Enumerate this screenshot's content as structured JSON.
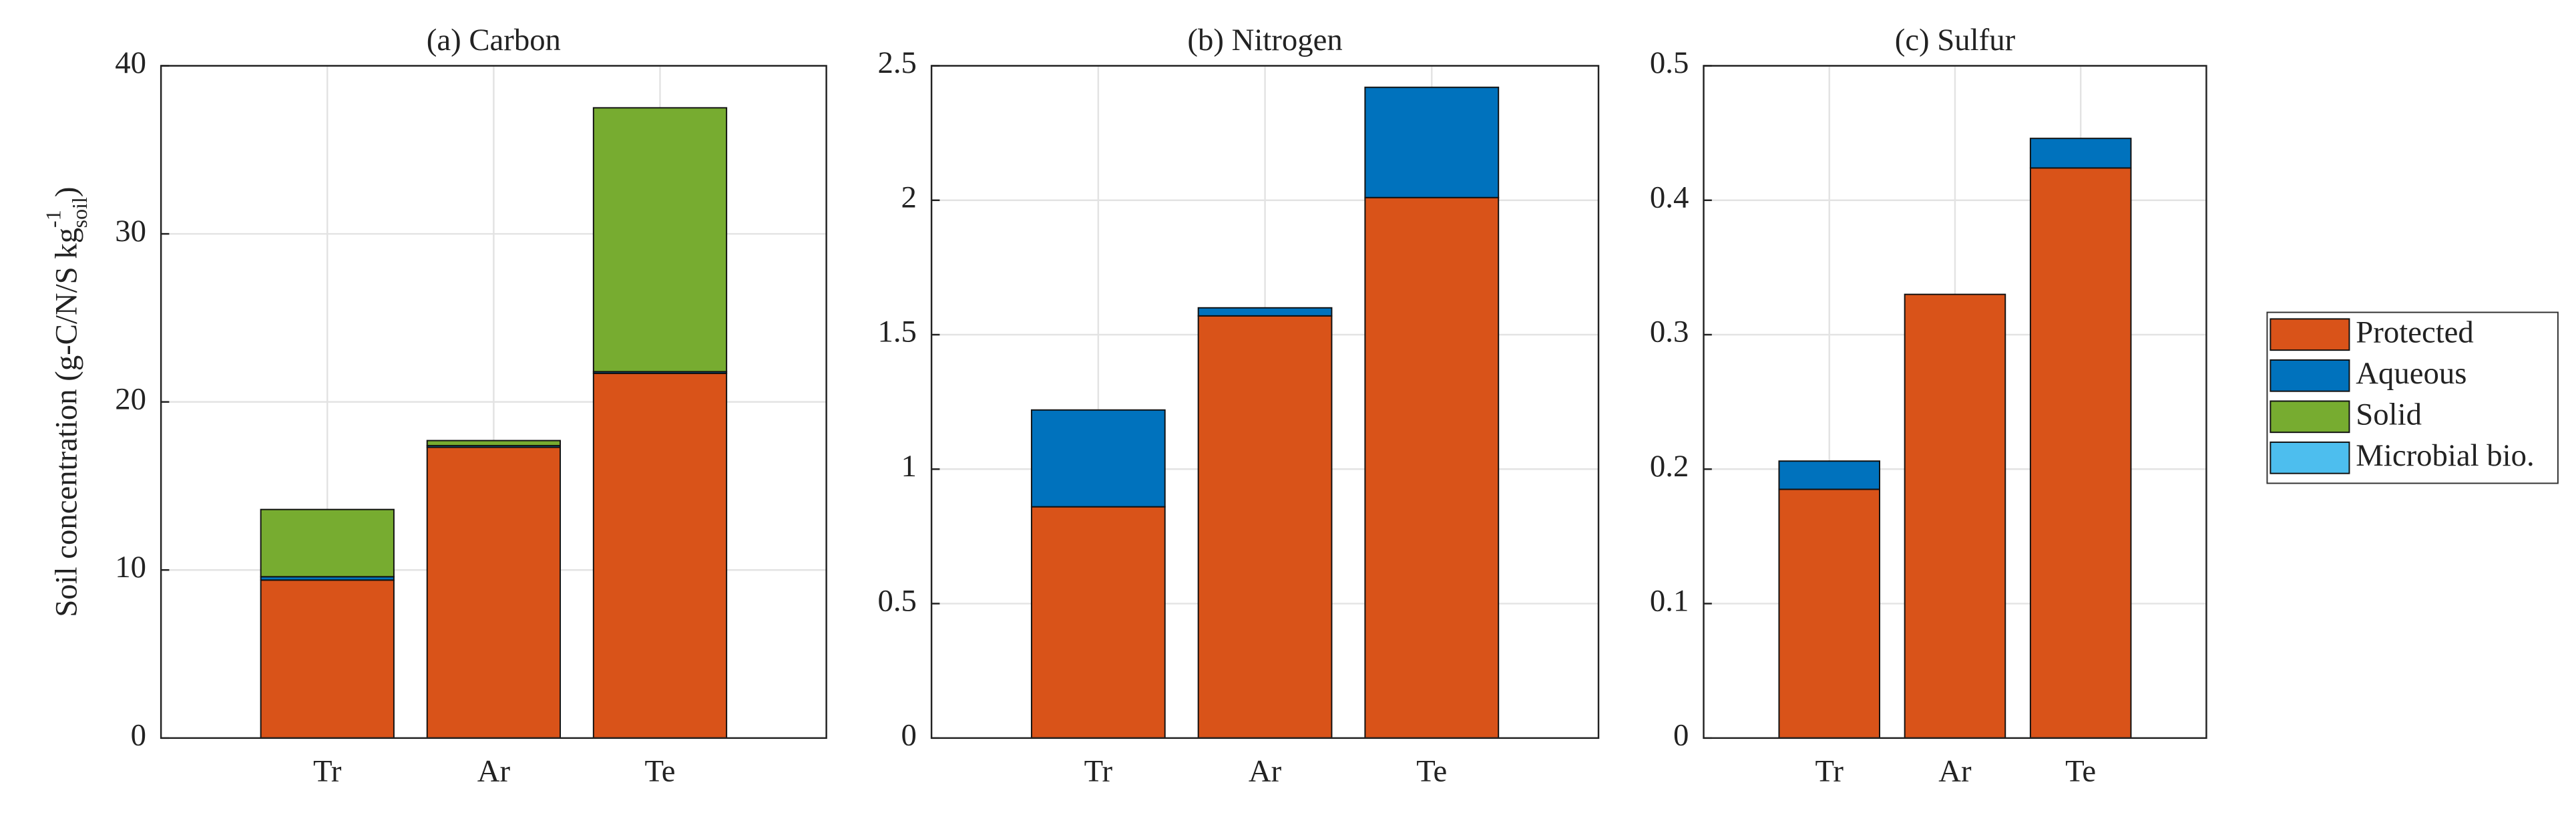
{
  "chart_data": [
    {
      "type": "stacked-bar",
      "title": "(a) Carbon",
      "ylabel": {
        "text": "Soil concentration (g-C/N/S kg",
        "sub": "soil",
        "sup": "-1",
        "end": ")"
      },
      "categories": [
        "Tr",
        "Ar",
        "Te"
      ],
      "xlim": [
        0,
        4
      ],
      "ylim": [
        0,
        40
      ],
      "yticks": [
        0,
        10,
        20,
        30,
        40
      ],
      "grid": true,
      "series": [
        {
          "name": "Protected",
          "color": "#D95319",
          "values": [
            9.4,
            17.3,
            21.7
          ]
        },
        {
          "name": "Aqueous",
          "color": "#0072BD",
          "values": [
            0.2,
            0.1,
            0.1
          ]
        },
        {
          "name": "Solid",
          "color": "#77AC30",
          "values": [
            4.0,
            0.3,
            15.7
          ]
        },
        {
          "name": "Microbial bio.",
          "color": "#4DBEEE",
          "values": [
            0,
            0,
            0
          ]
        }
      ]
    },
    {
      "type": "stacked-bar",
      "title": "(b) Nitrogen",
      "categories": [
        "Tr",
        "Ar",
        "Te"
      ],
      "xlim": [
        0,
        4
      ],
      "ylim": [
        0,
        2.5
      ],
      "yticks": [
        0,
        0.5,
        1,
        1.5,
        2,
        2.5
      ],
      "grid": true,
      "series": [
        {
          "name": "Protected",
          "color": "#D95319",
          "values": [
            0.86,
            1.57,
            2.01
          ]
        },
        {
          "name": "Aqueous",
          "color": "#0072BD",
          "values": [
            0.36,
            0.03,
            0.41
          ]
        },
        {
          "name": "Solid",
          "color": "#77AC30",
          "values": [
            0,
            0,
            0
          ]
        },
        {
          "name": "Microbial bio.",
          "color": "#4DBEEE",
          "values": [
            0,
            0,
            0
          ]
        }
      ]
    },
    {
      "type": "stacked-bar",
      "title": "(c) Sulfur",
      "categories": [
        "Tr",
        "Ar",
        "Te"
      ],
      "xlim": [
        0,
        4
      ],
      "ylim": [
        0,
        0.5
      ],
      "yticks": [
        0,
        0.1,
        0.2,
        0.3,
        0.4,
        0.5
      ],
      "grid": true,
      "legend": "outside-right",
      "series": [
        {
          "name": "Protected",
          "color": "#D95319",
          "values": [
            0.185,
            0.33,
            0.424
          ]
        },
        {
          "name": "Aqueous",
          "color": "#0072BD",
          "values": [
            0.021,
            0,
            0.022
          ]
        },
        {
          "name": "Solid",
          "color": "#77AC30",
          "values": [
            0,
            0,
            0
          ]
        },
        {
          "name": "Microbial bio.",
          "color": "#4DBEEE",
          "values": [
            0,
            0,
            0
          ]
        }
      ]
    }
  ]
}
